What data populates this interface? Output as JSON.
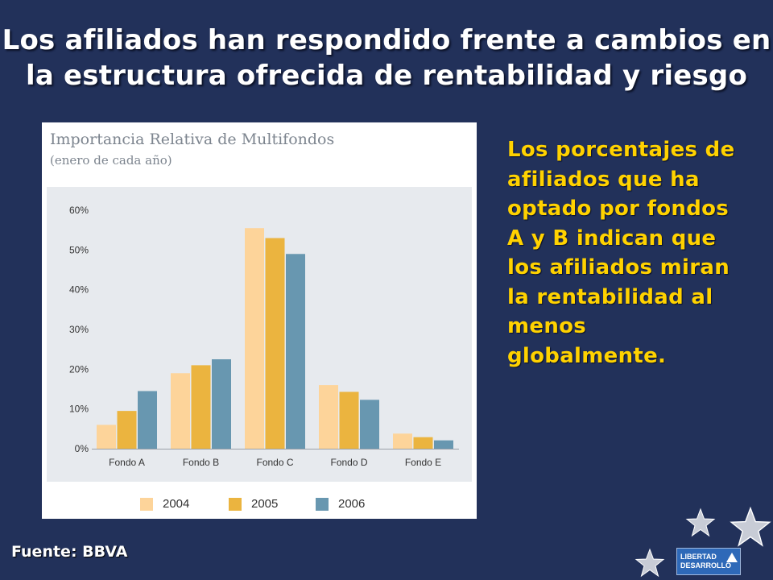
{
  "slide": {
    "title_line1": "Los afiliados han respondido frente a cambios en",
    "title_line2": "la estructura ofrecida de rentabilidad y riesgo",
    "side_text": "Los porcentajes de afiliados que ha optado por fondos A y B indican que los afiliados miran la rentabilidad al menos globalmente.",
    "source": "Fuente: BBVA",
    "logo_line1": "LIBERTAD",
    "logo_line2": "DESARROLLO"
  },
  "colors": {
    "background": "#22315a",
    "side_text": "#ffd200",
    "series_2004": "#fdd49a",
    "series_2005": "#ebb43f",
    "series_2006": "#6897b0"
  },
  "chart_data": {
    "type": "bar",
    "title": "Importancia Relativa de Multifondos",
    "subtitle": "(enero de cada año)",
    "categories": [
      "Fondo A",
      "Fondo B",
      "Fondo C",
      "Fondo D",
      "Fondo E"
    ],
    "series": [
      {
        "name": "2004",
        "values": [
          6,
          19,
          55.5,
          16,
          3.8
        ]
      },
      {
        "name": "2005",
        "values": [
          9.5,
          21,
          53,
          14.3,
          2.9
        ]
      },
      {
        "name": "2006",
        "values": [
          14.5,
          22.5,
          49,
          12.3,
          2.1
        ]
      }
    ],
    "y_ticks": [
      "0%",
      "10%",
      "20%",
      "30%",
      "40%",
      "50%",
      "60%"
    ],
    "ylim": [
      0,
      60
    ],
    "grid": false,
    "legend_position": "bottom"
  }
}
